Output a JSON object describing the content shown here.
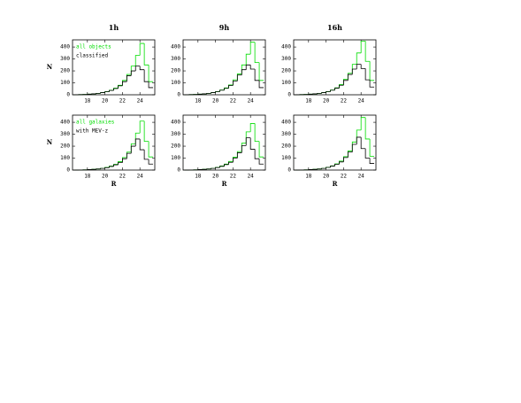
{
  "chart_data": [
    {
      "type": "histogram",
      "title": "1h",
      "ylabel": "N",
      "bins": [
        16.5,
        17,
        17.5,
        18,
        18.5,
        19,
        19.5,
        20,
        20.5,
        21,
        21.5,
        22,
        22.5,
        23,
        23.5,
        24,
        24.5,
        25,
        25.5
      ],
      "series": [
        {
          "name": "all objects",
          "color": "#00dd00",
          "values": [
            1,
            2,
            3,
            5,
            8,
            12,
            18,
            26,
            38,
            55,
            80,
            120,
            170,
            240,
            330,
            430,
            250,
            110
          ]
        },
        {
          "name": "classified",
          "color": "#000000",
          "values": [
            1,
            2,
            3,
            5,
            8,
            12,
            18,
            25,
            36,
            52,
            75,
            110,
            160,
            200,
            240,
            210,
            110,
            60
          ]
        }
      ],
      "xlim": [
        16.3,
        25.7
      ],
      "ylim": [
        0,
        460
      ],
      "xticks": [
        18,
        20,
        22,
        24
      ],
      "yticks": [
        0,
        100,
        200,
        300,
        400
      ]
    },
    {
      "type": "histogram",
      "title": "9h",
      "bins": [
        16.5,
        17,
        17.5,
        18,
        18.5,
        19,
        19.5,
        20,
        20.5,
        21,
        21.5,
        22,
        22.5,
        23,
        23.5,
        24,
        24.5,
        25,
        25.5
      ],
      "series": [
        {
          "color": "#00dd00",
          "values": [
            1,
            2,
            3,
            5,
            8,
            12,
            18,
            27,
            40,
            57,
            82,
            125,
            175,
            250,
            340,
            440,
            270,
            120
          ]
        },
        {
          "color": "#000000",
          "values": [
            1,
            2,
            3,
            5,
            8,
            12,
            18,
            26,
            38,
            54,
            78,
            115,
            165,
            210,
            250,
            215,
            120,
            60
          ]
        }
      ],
      "xlim": [
        16.3,
        25.7
      ],
      "ylim": [
        0,
        460
      ],
      "xticks": [
        18,
        20,
        22,
        24
      ],
      "yticks": [
        0,
        100,
        200,
        300,
        400
      ]
    },
    {
      "type": "histogram",
      "title": "16h",
      "bins": [
        16.5,
        17,
        17.5,
        18,
        18.5,
        19,
        19.5,
        20,
        20.5,
        21,
        21.5,
        22,
        22.5,
        23,
        23.5,
        24,
        24.5,
        25,
        25.5
      ],
      "series": [
        {
          "color": "#00dd00",
          "values": [
            1,
            2,
            3,
            5,
            8,
            12,
            18,
            27,
            40,
            58,
            85,
            130,
            180,
            255,
            350,
            450,
            280,
            120
          ]
        },
        {
          "color": "#000000",
          "values": [
            1,
            2,
            3,
            5,
            8,
            12,
            18,
            26,
            38,
            55,
            80,
            120,
            170,
            215,
            255,
            220,
            125,
            65
          ]
        }
      ],
      "xlim": [
        16.3,
        25.7
      ],
      "ylim": [
        0,
        460
      ],
      "xticks": [
        18,
        20,
        22,
        24
      ],
      "yticks": [
        0,
        100,
        200,
        300,
        400
      ]
    },
    {
      "type": "histogram",
      "ylabel": "N",
      "xlabel": "R",
      "bins": [
        16.5,
        17,
        17.5,
        18,
        18.5,
        19,
        19.5,
        20,
        20.5,
        21,
        21.5,
        22,
        22.5,
        23,
        23.5,
        24,
        24.5,
        25,
        25.5
      ],
      "series": [
        {
          "name": "all galaxies",
          "color": "#00dd00",
          "values": [
            0,
            1,
            2,
            4,
            6,
            9,
            14,
            22,
            33,
            48,
            70,
            105,
            150,
            220,
            310,
            410,
            240,
            110
          ]
        },
        {
          "name": "with MEV-z",
          "color": "#000000",
          "values": [
            0,
            1,
            2,
            4,
            6,
            9,
            14,
            20,
            30,
            44,
            62,
            95,
            140,
            200,
            260,
            170,
            90,
            50
          ]
        }
      ],
      "xlim": [
        16.3,
        25.7
      ],
      "ylim": [
        0,
        460
      ],
      "xticks": [
        18,
        20,
        22,
        24
      ],
      "yticks": [
        0,
        100,
        200,
        300,
        400
      ]
    },
    {
      "type": "histogram",
      "xlabel": "R",
      "bins": [
        16.5,
        17,
        17.5,
        18,
        18.5,
        19,
        19.5,
        20,
        20.5,
        21,
        21.5,
        22,
        22.5,
        23,
        23.5,
        24,
        24.5,
        25,
        25.5
      ],
      "series": [
        {
          "color": "#00dd00",
          "values": [
            0,
            1,
            2,
            4,
            6,
            9,
            14,
            22,
            34,
            50,
            72,
            108,
            155,
            225,
            320,
            390,
            240,
            110
          ]
        },
        {
          "color": "#000000",
          "values": [
            0,
            1,
            2,
            4,
            6,
            9,
            14,
            21,
            31,
            46,
            65,
            100,
            145,
            205,
            270,
            175,
            95,
            50
          ]
        }
      ],
      "xlim": [
        16.3,
        25.7
      ],
      "ylim": [
        0,
        460
      ],
      "xticks": [
        18,
        20,
        22,
        24
      ],
      "yticks": [
        0,
        100,
        200,
        300,
        400
      ]
    },
    {
      "type": "histogram",
      "xlabel": "R",
      "bins": [
        16.5,
        17,
        17.5,
        18,
        18.5,
        19,
        19.5,
        20,
        20.5,
        21,
        21.5,
        22,
        22.5,
        23,
        23.5,
        24,
        24.5,
        25,
        25.5
      ],
      "series": [
        {
          "color": "#00dd00",
          "values": [
            0,
            1,
            2,
            4,
            6,
            9,
            14,
            23,
            35,
            52,
            75,
            112,
            160,
            235,
            335,
            440,
            260,
            115
          ]
        },
        {
          "color": "#000000",
          "values": [
            0,
            1,
            2,
            4,
            6,
            9,
            14,
            22,
            33,
            48,
            68,
            105,
            150,
            215,
            275,
            180,
            100,
            55
          ]
        }
      ],
      "xlim": [
        16.3,
        25.7
      ],
      "ylim": [
        0,
        460
      ],
      "xticks": [
        18,
        20,
        22,
        24
      ],
      "yticks": [
        0,
        100,
        200,
        300,
        400
      ]
    }
  ]
}
